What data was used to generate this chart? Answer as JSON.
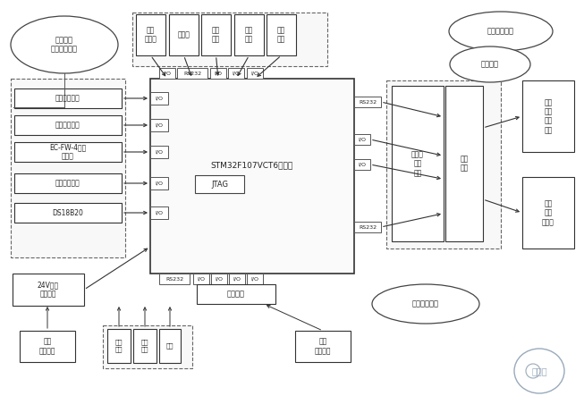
{
  "fig_width": 6.53,
  "fig_height": 4.43,
  "dpi": 100,
  "sensors": [
    "高水位传感器",
    "低水位传感器",
    "EC-FW-4流量\n传感器",
    "压力检测开关",
    "DS18B20"
  ],
  "top_boxes": [
    "出光\n指示灯",
    "触摸屏",
    "钒盘\n开关",
    "急停\n按鈕",
    "启动\n按鈕"
  ],
  "bottom_boxes": [
    "音效\n合成模块",
    "汽化\n脚踏",
    "凝血\n脚踏",
    "门控",
    "光纤\n检测模块"
  ],
  "right_boxes": [
    "水冷\n单元\n电源\n接口",
    "电源\n接口\n激光器"
  ],
  "power_box": "24V直流\n开关电源",
  "optocoupler_box": "光耦隔离",
  "relay_box": "继电器\n驱动\n电路",
  "filter_box": "滤波\n电路",
  "stm32_label": "STM32F107VCT6控制板",
  "jtag_label": "JTAG",
  "ellipse_topleft": "精密水冷\n单元参数监控",
  "ellipse_topright": "人机交互模块",
  "ellipse_midright": "配电模块",
  "ellipse_botmid": "人机交互模块",
  "logo_text": "日月辰"
}
